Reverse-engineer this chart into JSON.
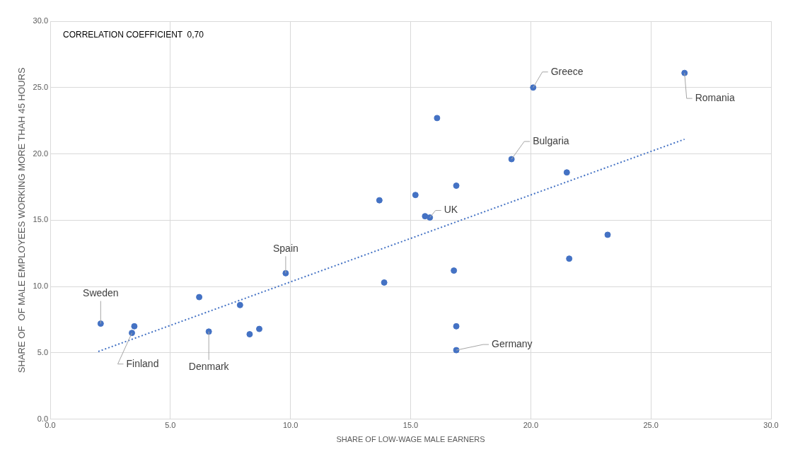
{
  "chart_data": {
    "type": "scatter",
    "xlabel": "SHARE OF LOW-WAGE MALE EARNERS",
    "ylabel": "SHARE OF  OF MALE EMPLOYEES WORKING MORE THAH 45 HOURS",
    "xlim": [
      0,
      30
    ],
    "xticks": [
      {
        "value": 0,
        "label": "0.0"
      },
      {
        "value": 5,
        "label": "5.0"
      },
      {
        "value": 10,
        "label": "10.0"
      },
      {
        "value": 15,
        "label": "15.0"
      },
      {
        "value": 20,
        "label": "20.0"
      },
      {
        "value": 25,
        "label": "25.0"
      },
      {
        "value": 30,
        "label": "30.0"
      }
    ],
    "ylim": [
      0,
      30
    ],
    "yticks": [
      {
        "value": 0,
        "label": "0.0"
      },
      {
        "value": 5,
        "label": "5.0"
      },
      {
        "value": 10,
        "label": "10.0"
      },
      {
        "value": 15,
        "label": "15.0"
      },
      {
        "value": 20,
        "label": "20.0"
      },
      {
        "value": 25,
        "label": "25.0"
      },
      {
        "value": 30,
        "label": "30.0"
      }
    ],
    "grid": true,
    "legend": false,
    "marker": "circle",
    "series": [
      {
        "type": "scatter",
        "color": "#4472c4",
        "x": [
          2.1,
          3.5,
          3.4,
          6.2,
          6.6,
          7.9,
          8.3,
          8.7,
          9.8,
          13.7,
          13.9,
          15.2,
          15.6,
          15.8,
          16.1,
          16.8,
          16.9,
          16.9,
          16.9,
          19.2,
          20.1,
          21.5,
          21.6,
          23.2,
          26.4
        ],
        "values": [
          7.2,
          7.0,
          6.5,
          9.2,
          6.6,
          8.6,
          6.4,
          6.8,
          11.0,
          16.5,
          10.3,
          16.9,
          15.3,
          15.2,
          22.7,
          11.2,
          17.6,
          7.0,
          5.2,
          19.6,
          25.0,
          18.6,
          12.1,
          13.9,
          26.1
        ]
      },
      {
        "type": "line",
        "color": "#4472c4",
        "line_style": "dotted",
        "marker": "none",
        "x": [
          2.0,
          26.4
        ],
        "values": [
          5.1,
          21.1
        ]
      }
    ],
    "annotations": [
      "CORRELATION COEFFICIENT  0,70",
      {
        "text": "Sweden",
        "x": 2.1,
        "y": 7.2
      },
      {
        "text": "Finland",
        "x": 3.4,
        "y": 6.5
      },
      {
        "text": "Denmark",
        "x": 6.6,
        "y": 6.6
      },
      {
        "text": "Spain",
        "x": 9.8,
        "y": 11.0
      },
      {
        "text": "UK",
        "x": 15.8,
        "y": 15.2
      },
      {
        "text": "Germany",
        "x": 16.9,
        "y": 5.2
      },
      {
        "text": "Bulgaria",
        "x": 19.2,
        "y": 19.6
      },
      {
        "text": "Greece",
        "x": 20.1,
        "y": 25.0
      },
      {
        "text": "Romania",
        "x": 26.4,
        "y": 26.1
      }
    ]
  }
}
